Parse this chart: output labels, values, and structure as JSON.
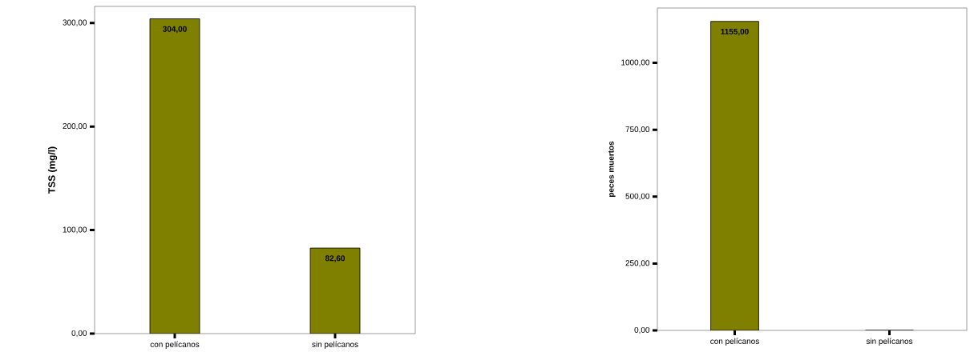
{
  "chart_data": [
    {
      "type": "bar",
      "ylabel": "TSS (mg/l)",
      "categories": [
        "con pelícanos",
        "sin pelícanos"
      ],
      "values": [
        304,
        82.6
      ],
      "value_labels": [
        "304,00",
        "82,60"
      ],
      "color": "#808000",
      "ylim": [
        0,
        316
      ],
      "yticks": [
        {
          "value": 0,
          "label": "0,00"
        },
        {
          "value": 100,
          "label": "100,00"
        },
        {
          "value": 200,
          "label": "200,00"
        },
        {
          "value": 300,
          "label": "300,00"
        }
      ]
    },
    {
      "type": "bar",
      "ylabel": "peces muertos",
      "categories": [
        "con pelícanos",
        "sin pelícanos"
      ],
      "values": [
        1155,
        0
      ],
      "value_labels": [
        "1155,00",
        null
      ],
      "color": "#808000",
      "ylim": [
        0,
        1205
      ],
      "yticks": [
        {
          "value": 0,
          "label": "0,00"
        },
        {
          "value": 250,
          "label": "250,00"
        },
        {
          "value": 500,
          "label": "500,00"
        },
        {
          "value": 750,
          "label": "750,00"
        },
        {
          "value": 1000,
          "label": "1000,00"
        }
      ]
    }
  ]
}
